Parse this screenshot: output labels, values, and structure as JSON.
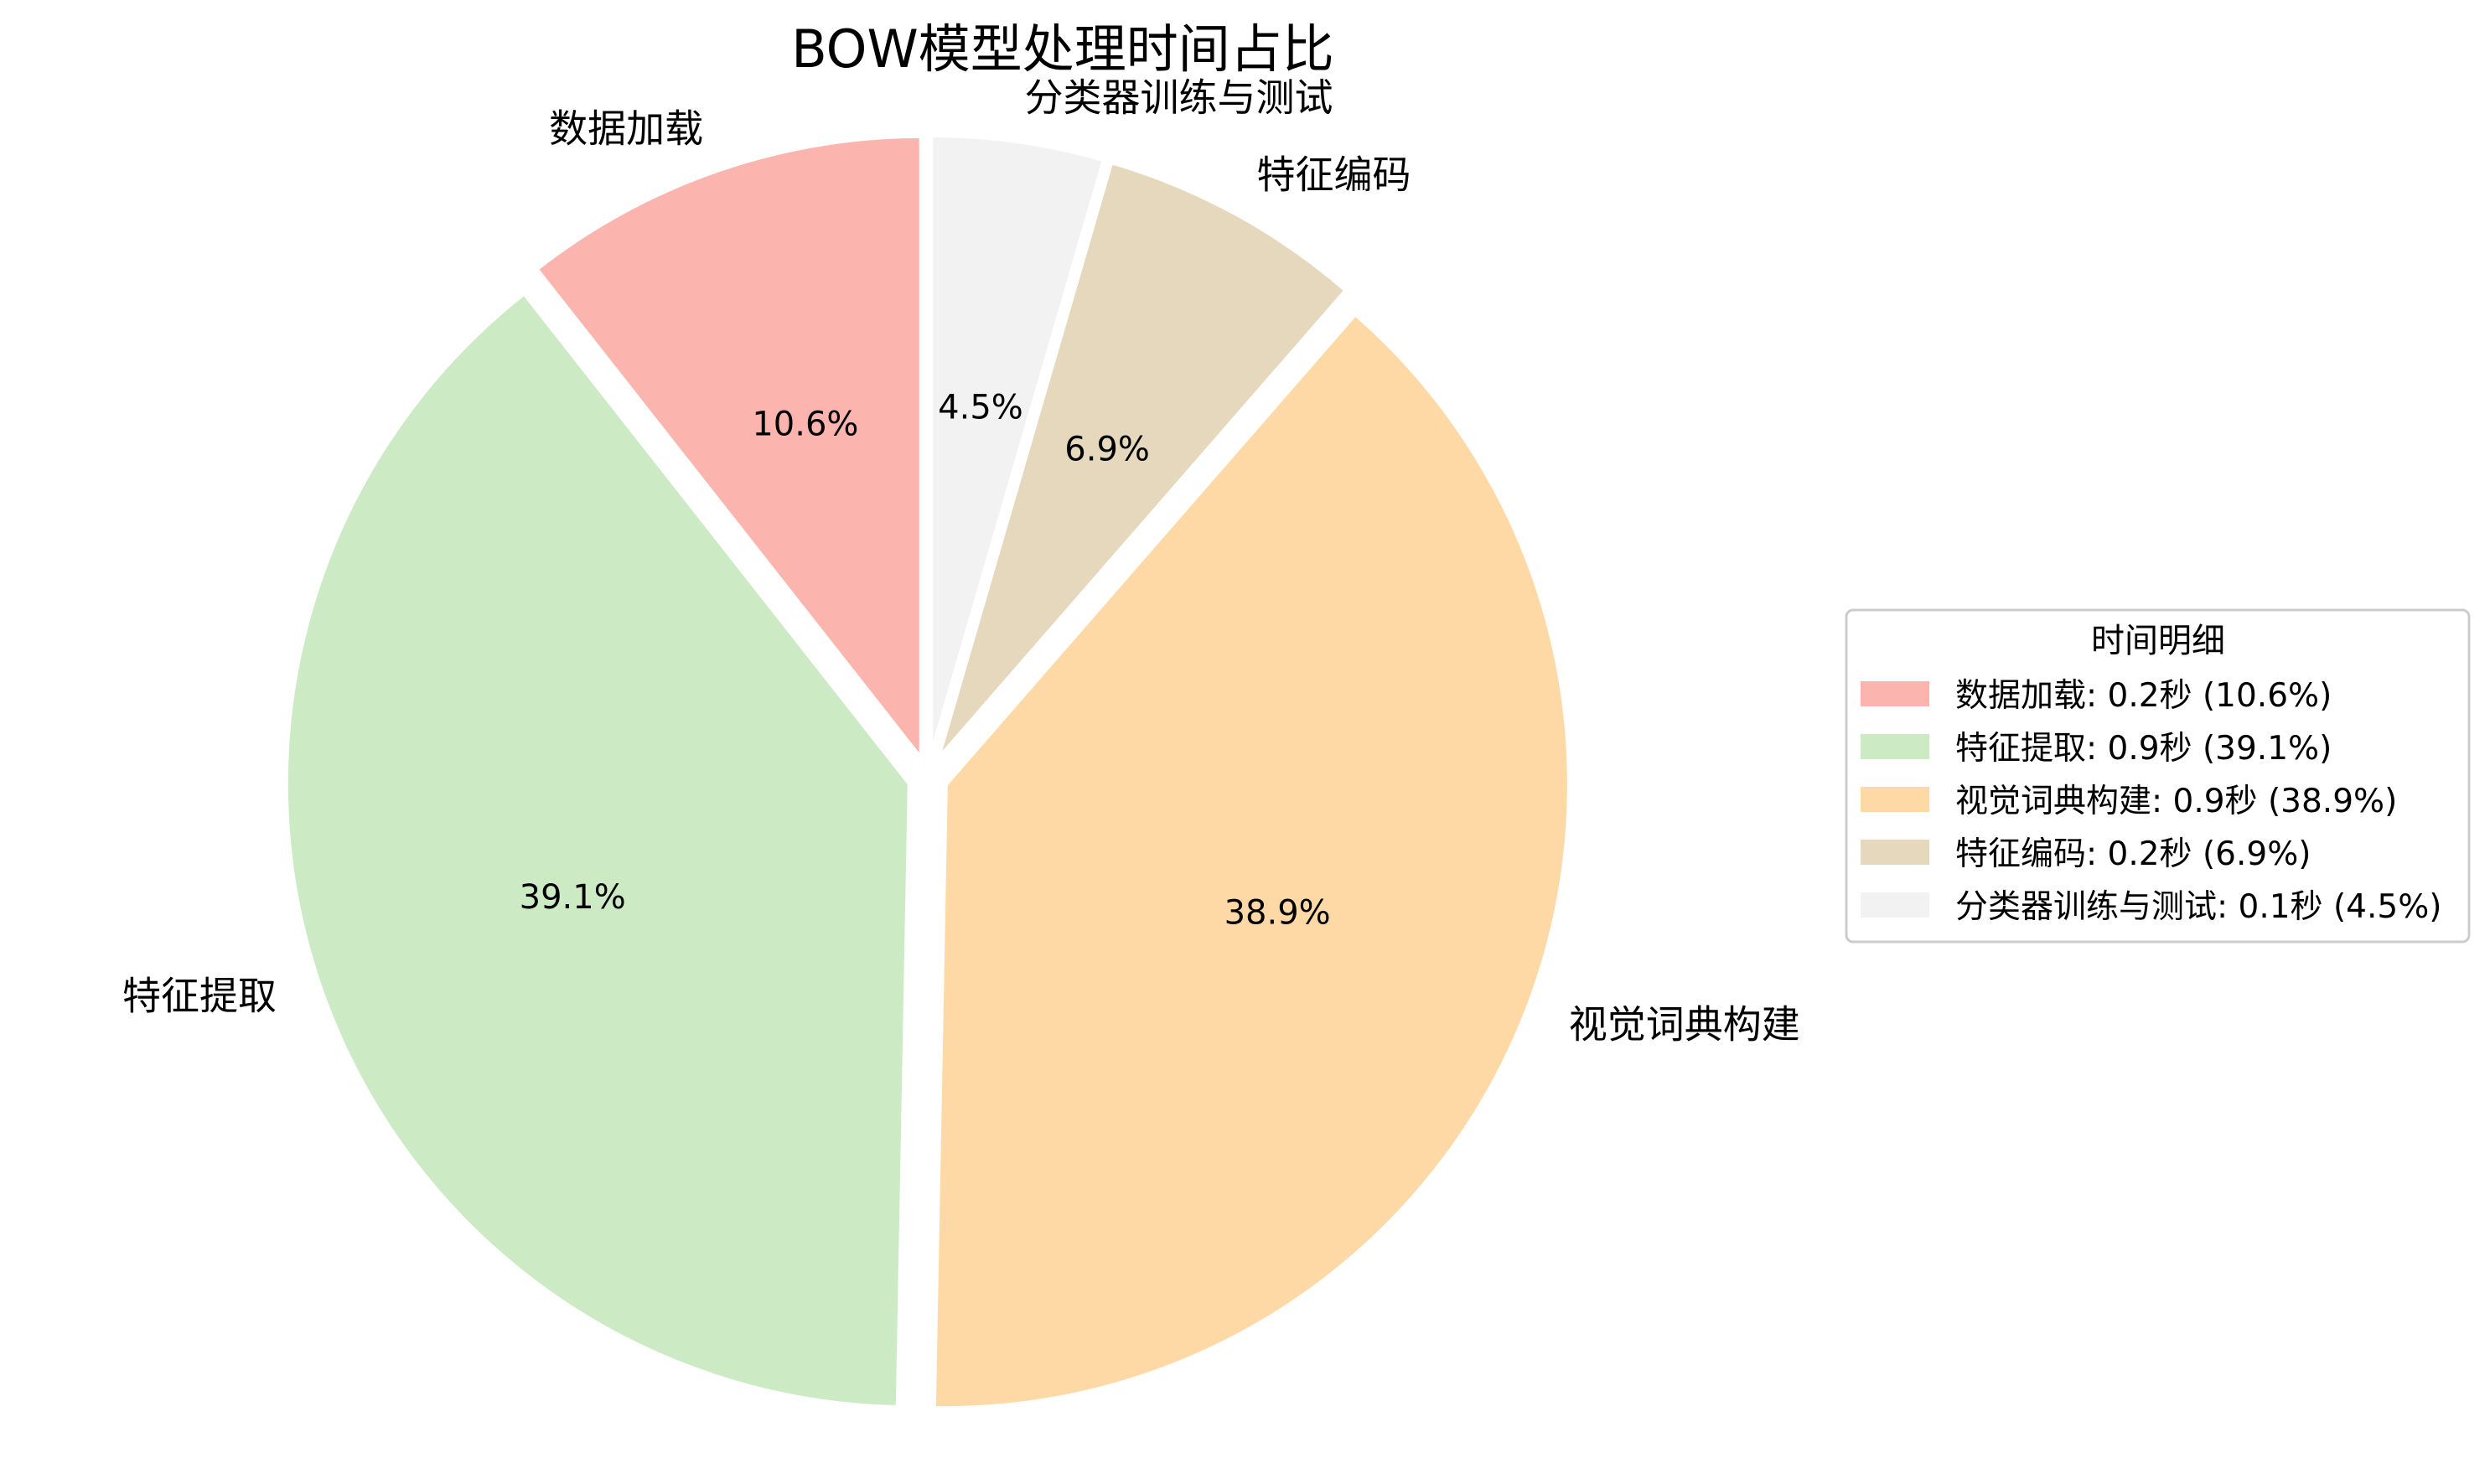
{
  "chart_data": {
    "type": "pie",
    "title": "BOW模型处理时间占比",
    "slices": [
      {
        "label": "数据加载",
        "value": 10.6,
        "pct_label": "10.6%",
        "color": "#fbb4ae",
        "legend": "数据加载: 0.2秒 (10.6%)"
      },
      {
        "label": "特征提取",
        "value": 39.1,
        "pct_label": "39.1%",
        "color": "#ccebc5",
        "legend": "特征提取: 0.9秒 (39.1%)"
      },
      {
        "label": "视觉词典构建",
        "value": 38.9,
        "pct_label": "38.9%",
        "color": "#fed9a6",
        "legend": "视觉词典构建: 0.9秒 (38.9%)"
      },
      {
        "label": "特征编码",
        "value": 6.9,
        "pct_label": "6.9%",
        "color": "#e5d8bd",
        "legend": "特征编码: 0.2秒 (6.9%)"
      },
      {
        "label": "分类器训练与测试",
        "value": 4.5,
        "pct_label": "4.5%",
        "color": "#f2f2f2",
        "legend": "分类器训练与测试: 0.1秒 (4.5%)"
      }
    ],
    "start_angle": "top",
    "direction": "counterclockwise",
    "exploded": true,
    "legend": {
      "title": "时间明细",
      "placement": "right"
    }
  }
}
